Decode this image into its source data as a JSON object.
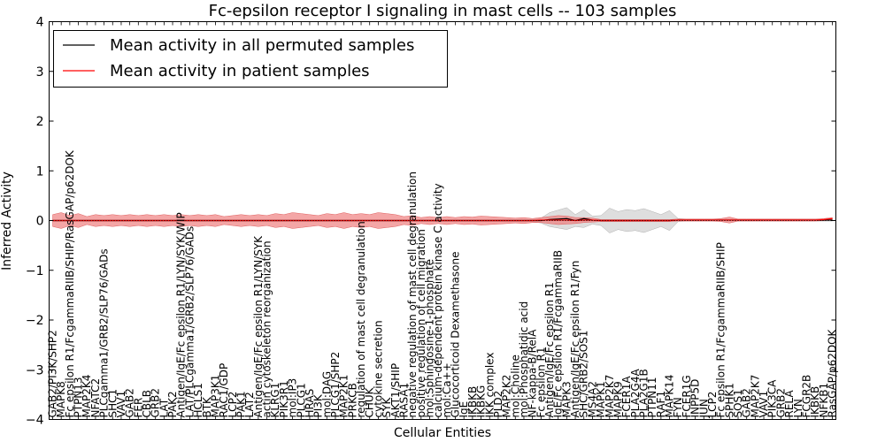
{
  "chart_data": {
    "type": "line",
    "title": "Fc-epsilon receptor I signaling in mast cells -- 103 samples",
    "xlabel": "Cellular Entities",
    "ylabel": "Inferred Activity",
    "ylim": [
      -4,
      4
    ],
    "yticks": [
      -4,
      -3,
      -2,
      -1,
      0,
      1,
      2,
      3,
      4
    ],
    "ytick_labels": [
      "−4",
      "−3",
      "−2",
      "−1",
      "0",
      "1",
      "2",
      "3",
      "4"
    ],
    "grid": false,
    "legend_position": "top-left",
    "categories": [
      "GAB2/PI3K/SHP2",
      "MAPK8",
      "Fc epsilon R1/FcgammaRIIB/SHIP/RasGAP/p62DOK",
      "PTPN13",
      "MAP2K4",
      "NFATC2",
      "PLCgamma1/GRB2/SLP76/GADs",
      "SHC1",
      "VAV1",
      "GAB2",
      "FER",
      "CBLB",
      "GRB2",
      "LAT",
      "PAK2",
      "Antigen/IgE/Fc epsilon R1/LYN/SYK/WIP",
      "LAT/PLCgamma1/GRB2/SLP76/GADs",
      "HCLS1",
      "BTK",
      "MAP3K1",
      "RAC1/GDP",
      "LCP2",
      "PAK1",
      "LAT2",
      "Antigen/IgE/Fc epsilon R1/LYN/SYK",
      "actin cytoskeleton reorganization",
      "KLRG1",
      "PIK3R1",
      "mol:IP3",
      "PLCG1",
      "HRAS",
      "PI3K",
      "mol:DAG",
      "PLCG1/SHP2",
      "MAP2K1",
      "PRKCB",
      "regulation of mast cell degranulation",
      "CHUK",
      "cytokine secretion",
      "SYK",
      "AKT1/SHIP",
      "RASA1",
      "negative regulation of mast cell degranulation",
      "positive regulation of cell migration",
      "mol:Sphingosine-1-phosphate",
      "calcium-dependent protein kinase C activity",
      "mol:Ca++",
      "Glucocorticoid Dexamethasone",
      "IgE",
      "IKBKB",
      "IKBKG",
      "IKK complex",
      "PLD2",
      "MAP2K2",
      "mol:Choline",
      "mol:Phosphatidic acid",
      "NF-kappa-B/RelA",
      "Fc epsilon R1",
      "Antigen/IgE/Fc epsilon R1",
      "IgE/Fc epsilon R1/FcgammaRIIB",
      "MAPK3",
      "Antigen/IgE/Fc epsilon R1/Fyn",
      "SHC/GRB2/SOS1",
      "MS4A2",
      "MAPK1",
      "MAP2K7",
      "MAPK9",
      "FCER1A",
      "PLA2G4A",
      "PLA2G1B",
      "PTPN11",
      "RAF1",
      "MAPK14",
      "FYN",
      "FCER1G",
      "INPP5D",
      "JUN",
      "LCP2",
      "Fc epsilon R1/FcgammaRIIB/SHIP",
      "SPHK1",
      "SOS1",
      "GAB2",
      "MAP2K7",
      "VAV1",
      "PIK3CA",
      "GRB2",
      "RELA",
      "LYN",
      "FCGR2B",
      "IKBKB",
      "NFKB1",
      "RasGAP/p62DOK"
    ],
    "series": [
      {
        "name": "Mean activity in all permuted samples",
        "color": "#000000",
        "values": [
          0.0,
          0.0,
          0.0,
          0.0,
          0.0,
          0.0,
          0.0,
          0.0,
          0.0,
          0.0,
          0.0,
          0.0,
          0.0,
          0.0,
          0.0,
          0.0,
          0.0,
          0.0,
          0.0,
          0.0,
          0.0,
          0.0,
          0.0,
          0.0,
          0.0,
          0.0,
          0.0,
          0.0,
          0.0,
          0.0,
          0.0,
          0.0,
          0.0,
          0.0,
          0.0,
          0.0,
          0.0,
          0.0,
          0.0,
          0.0,
          0.0,
          0.0,
          0.0,
          0.0,
          0.0,
          0.0,
          0.0,
          0.0,
          0.0,
          0.0,
          0.0,
          0.0,
          0.0,
          0.0,
          0.0,
          0.0,
          0.0,
          0.0,
          0.02,
          0.03,
          0.04,
          0.0,
          0.04,
          0.01,
          0.0,
          0.0,
          0.0,
          0.0,
          0.0,
          0.0,
          0.0,
          0.0,
          0.0,
          0.01,
          0.01,
          0.01,
          0.01,
          0.01,
          0.01,
          0.01,
          0.01,
          0.01,
          0.01,
          0.01,
          0.01,
          0.01,
          0.01,
          0.01,
          0.01,
          0.01,
          0.01,
          0.01
        ]
      },
      {
        "name": "Mean activity in patient samples",
        "color": "#ff0000",
        "values": [
          0.0,
          0.0,
          0.0,
          0.0,
          0.0,
          0.0,
          0.0,
          0.0,
          0.0,
          0.0,
          0.0,
          0.0,
          0.0,
          0.0,
          0.0,
          0.0,
          0.0,
          0.0,
          0.0,
          0.0,
          0.0,
          0.0,
          0.0,
          0.0,
          0.0,
          0.0,
          0.0,
          0.0,
          0.0,
          0.0,
          0.0,
          0.0,
          0.0,
          0.0,
          0.0,
          0.0,
          0.0,
          0.0,
          0.0,
          0.0,
          0.0,
          0.0,
          0.0,
          0.0,
          0.0,
          0.0,
          0.0,
          0.0,
          0.0,
          0.0,
          0.0,
          0.0,
          0.0,
          0.0,
          0.0,
          0.0,
          0.0,
          0.01,
          0.01,
          0.01,
          0.01,
          0.0,
          0.01,
          0.01,
          0.0,
          0.0,
          0.0,
          0.0,
          0.0,
          0.0,
          0.0,
          0.0,
          0.0,
          0.01,
          0.01,
          0.01,
          0.01,
          0.01,
          0.01,
          0.01,
          0.01,
          0.01,
          0.01,
          0.01,
          0.01,
          0.01,
          0.01,
          0.01,
          0.01,
          0.01,
          0.02,
          0.04
        ]
      }
    ],
    "permuted_band_halfwidth": [
      0.02,
      0.02,
      0.02,
      0.02,
      0.02,
      0.02,
      0.02,
      0.02,
      0.02,
      0.02,
      0.02,
      0.02,
      0.02,
      0.02,
      0.02,
      0.02,
      0.02,
      0.02,
      0.02,
      0.02,
      0.02,
      0.02,
      0.02,
      0.02,
      0.02,
      0.02,
      0.02,
      0.02,
      0.02,
      0.02,
      0.02,
      0.02,
      0.02,
      0.02,
      0.02,
      0.02,
      0.02,
      0.02,
      0.02,
      0.02,
      0.02,
      0.02,
      0.02,
      0.02,
      0.02,
      0.02,
      0.02,
      0.02,
      0.02,
      0.02,
      0.02,
      0.02,
      0.02,
      0.02,
      0.02,
      0.02,
      0.02,
      0.05,
      0.14,
      0.18,
      0.22,
      0.12,
      0.18,
      0.08,
      0.1,
      0.25,
      0.18,
      0.22,
      0.2,
      0.24,
      0.18,
      0.12,
      0.2,
      0.03,
      0.02,
      0.02,
      0.02,
      0.02,
      0.02,
      0.02,
      0.02,
      0.02,
      0.02,
      0.02,
      0.02,
      0.02,
      0.02,
      0.02,
      0.02,
      0.02,
      0.02,
      0.02
    ],
    "patient_band_halfwidth": [
      0.12,
      0.16,
      0.1,
      0.14,
      0.08,
      0.12,
      0.1,
      0.12,
      0.1,
      0.12,
      0.1,
      0.12,
      0.1,
      0.12,
      0.1,
      0.12,
      0.1,
      0.12,
      0.1,
      0.12,
      0.08,
      0.1,
      0.12,
      0.1,
      0.12,
      0.1,
      0.14,
      0.12,
      0.16,
      0.14,
      0.12,
      0.1,
      0.14,
      0.12,
      0.16,
      0.12,
      0.14,
      0.12,
      0.16,
      0.14,
      0.12,
      0.08,
      0.1,
      0.06,
      0.08,
      0.06,
      0.08,
      0.06,
      0.08,
      0.07,
      0.09,
      0.08,
      0.07,
      0.06,
      0.05,
      0.06,
      0.04,
      0.05,
      0.07,
      0.09,
      0.08,
      0.06,
      0.05,
      0.04,
      0.02,
      0.02,
      0.02,
      0.02,
      0.02,
      0.02,
      0.02,
      0.02,
      0.02,
      0.02,
      0.02,
      0.02,
      0.02,
      0.02,
      0.03,
      0.06,
      0.02,
      0.02,
      0.02,
      0.02,
      0.02,
      0.02,
      0.02,
      0.02,
      0.02,
      0.02,
      0.02,
      0.02
    ],
    "band_colors": {
      "permuted": "#d8d8d8",
      "patient": "#f08080"
    }
  }
}
